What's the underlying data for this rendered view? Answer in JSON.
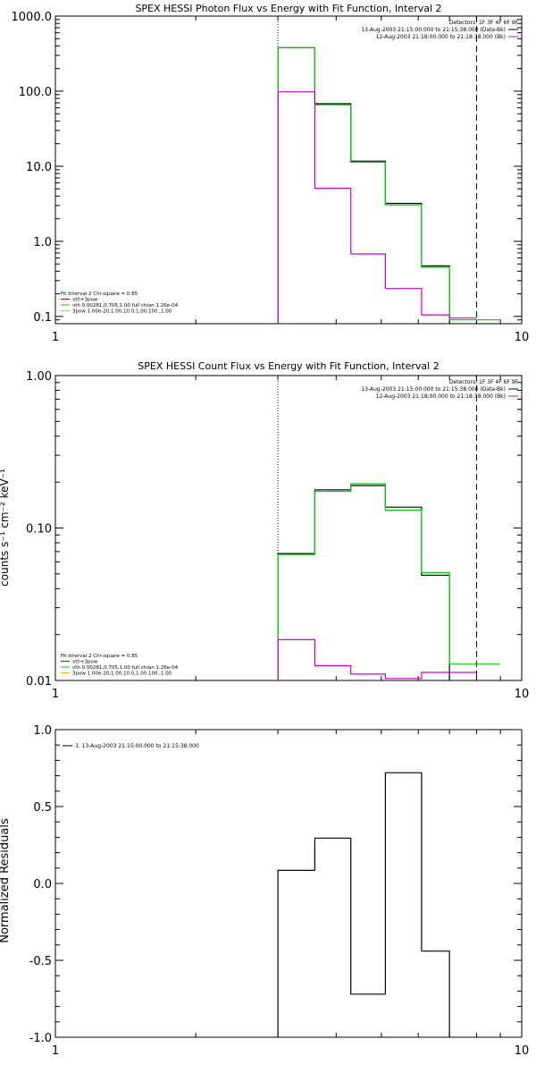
{
  "chart_data": [
    {
      "type": "line",
      "title": "SPEX HESSI Photon Flux vs Energy with Fit Function, Interval 2",
      "xlabel": "",
      "ylabel": "",
      "xscale": "log",
      "yscale": "log",
      "xlim": [
        1,
        10
      ],
      "ylim": [
        0.08,
        1000
      ],
      "xticks": [
        {
          "v": 1,
          "label": "1"
        },
        {
          "v": 10,
          "label": "10"
        }
      ],
      "yticks": [
        {
          "v": 0.1,
          "label": "0.1"
        },
        {
          "v": 1,
          "label": "1.0"
        },
        {
          "v": 10,
          "label": "10.0"
        },
        {
          "v": 100,
          "label": "100.0"
        },
        {
          "v": 1000,
          "label": "1000.0"
        }
      ],
      "vlines": [
        {
          "x": 3.0,
          "style": "dotted"
        },
        {
          "x": 8.0,
          "style": "dashed"
        }
      ],
      "legend_topright": [
        {
          "text": "Detectors: 1F 3F 4F 6F 9F",
          "color": ""
        },
        {
          "text": "13-Aug-2003 21:15:00.000 to 21:15:38.000 (Data-Bk)",
          "color": "#000000"
        },
        {
          "text": "12-Aug-2003 21:18:00.000 to 21:18:38.000 (Bk)",
          "color": "#cc00cc"
        }
      ],
      "legend_bottomleft": [
        {
          "text": "Fit Interval 2   Chi-square = 0.85",
          "color": ""
        },
        {
          "text": "vth+3pow",
          "color": "#cc0000"
        },
        {
          "text": "vth 0.00281,0.705,1.00  full chian 1.26e-04",
          "color": "#00cc00"
        },
        {
          "text": "3pow 1.00e-20,1.00,10.0,1.00,100.,1.00",
          "color": "#e8b000"
        }
      ],
      "series": [
        {
          "name": "13-Aug-2003 21:15:00.000 to 21:15:38.000 (Data-Bk)",
          "color": "#000000",
          "edges": [
            3.0,
            3.6,
            4.3,
            5.1,
            6.1,
            7.0,
            8.0
          ],
          "values": [
            380,
            68,
            11.7,
            3.2,
            0.47,
            null
          ]
        },
        {
          "name": "vth 0.00281,0.705,1.00  full chian 1.26e-04",
          "color": "#00cc00",
          "edges": [
            3.0,
            3.6,
            4.3,
            5.1,
            6.1,
            7.0,
            8.0,
            9.0
          ],
          "values": [
            380,
            66,
            11.3,
            3.05,
            0.45,
            0.09,
            0.09
          ]
        },
        {
          "name": "12-Aug-2003 21:18:00.000 to 21:18:38.000 (Bk)",
          "color": "#cc00cc",
          "edges": [
            3.0,
            3.6,
            4.3,
            5.1,
            6.1,
            7.0,
            8.0
          ],
          "values": [
            98,
            5.1,
            0.68,
            0.235,
            0.105,
            0.095
          ]
        }
      ]
    },
    {
      "type": "line",
      "title": "SPEX HESSI Count Flux vs Energy with Fit Function, Interval 2",
      "xlabel": "",
      "ylabel": "counts s⁻¹ cm⁻² keV⁻¹",
      "xscale": "log",
      "yscale": "log",
      "xlim": [
        1,
        10
      ],
      "ylim": [
        0.01,
        1
      ],
      "xticks": [
        {
          "v": 1,
          "label": "1"
        },
        {
          "v": 10,
          "label": "10"
        }
      ],
      "yticks": [
        {
          "v": 0.01,
          "label": "0.01"
        },
        {
          "v": 0.1,
          "label": "0.10"
        },
        {
          "v": 1,
          "label": "1.00"
        }
      ],
      "vlines": [
        {
          "x": 3.0,
          "style": "dotted"
        },
        {
          "x": 8.0,
          "style": "dashed"
        }
      ],
      "legend_topright": [
        {
          "text": "Detectors: 1F 3F 4F 6F 9F",
          "color": ""
        },
        {
          "text": "13-Aug-2003 21:15:00.000 to 21:15:38.000 (Data-Bk)",
          "color": "#000000"
        },
        {
          "text": "12-Aug-2003 21:18:00.000 to 21:18:38.000 (Bk)",
          "color": "#cc00cc"
        }
      ],
      "legend_bottomleft": [
        {
          "text": "Fit Interval 2   Chi-square = 0.85",
          "color": ""
        },
        {
          "text": "vth+3pow",
          "color": "#cc0000"
        },
        {
          "text": "vth 0.00281,0.705,1.00  full chian 1.26e-04",
          "color": "#00cc00"
        },
        {
          "text": "3pow 1.00e-20,1.00,10.0,1.00,100.,1.00",
          "color": "#e8b000"
        }
      ],
      "series": [
        {
          "name": "13-Aug-2003 21:15:00.000 to 21:15:38.000 (Data-Bk)",
          "color": "#000000",
          "edges": [
            3.0,
            3.6,
            4.3,
            5.1,
            6.1,
            7.0,
            8.0
          ],
          "values": [
            0.068,
            0.178,
            0.19,
            0.137,
            0.049,
            null
          ]
        },
        {
          "name": "vth 0.00281,0.705,1.00  full chian 1.26e-04",
          "color": "#00cc00",
          "edges": [
            3.0,
            3.6,
            4.3,
            5.1,
            6.1,
            7.0,
            8.0,
            9.0
          ],
          "values": [
            0.067,
            0.174,
            0.195,
            0.131,
            0.051,
            0.0128,
            0.0128
          ]
        },
        {
          "name": "12-Aug-2003 21:18:00.000 to 21:18:38.000 (Bk)",
          "color": "#cc00cc",
          "edges": [
            3.0,
            3.6,
            4.3,
            5.1,
            6.1,
            7.0,
            8.0
          ],
          "values": [
            0.0185,
            0.0125,
            0.011,
            0.0103,
            0.0113,
            0.0113
          ]
        }
      ]
    },
    {
      "type": "line",
      "title": "",
      "xlabel": "",
      "ylabel": "Normalized Residuals",
      "xscale": "log",
      "yscale": "linear",
      "xlim": [
        1,
        10
      ],
      "ylim": [
        -1.0,
        1.0
      ],
      "xticks": [
        {
          "v": 1,
          "label": "1"
        },
        {
          "v": 10,
          "label": "10"
        }
      ],
      "yticks": [
        {
          "v": -1.0,
          "label": "-1.0"
        },
        {
          "v": -0.5,
          "label": "-0.5"
        },
        {
          "v": 0.0,
          "label": "0.0"
        },
        {
          "v": 0.5,
          "label": "0.5"
        },
        {
          "v": 1.0,
          "label": "1.0"
        }
      ],
      "vlines": [],
      "legend_topleft": [
        {
          "text": "3. 13-Aug-2003 21:15:00.000 to 21:15:38.000",
          "color": "#000000"
        }
      ],
      "series": [
        {
          "name": "3. 13-Aug-2003 21:15:00.000 to 21:15:38.000",
          "color": "#000000",
          "edges": [
            3.0,
            3.6,
            4.3,
            5.1,
            6.1,
            7.0,
            8.0
          ],
          "values": [
            0.085,
            0.295,
            -0.72,
            0.72,
            -0.44,
            null
          ]
        }
      ]
    }
  ]
}
